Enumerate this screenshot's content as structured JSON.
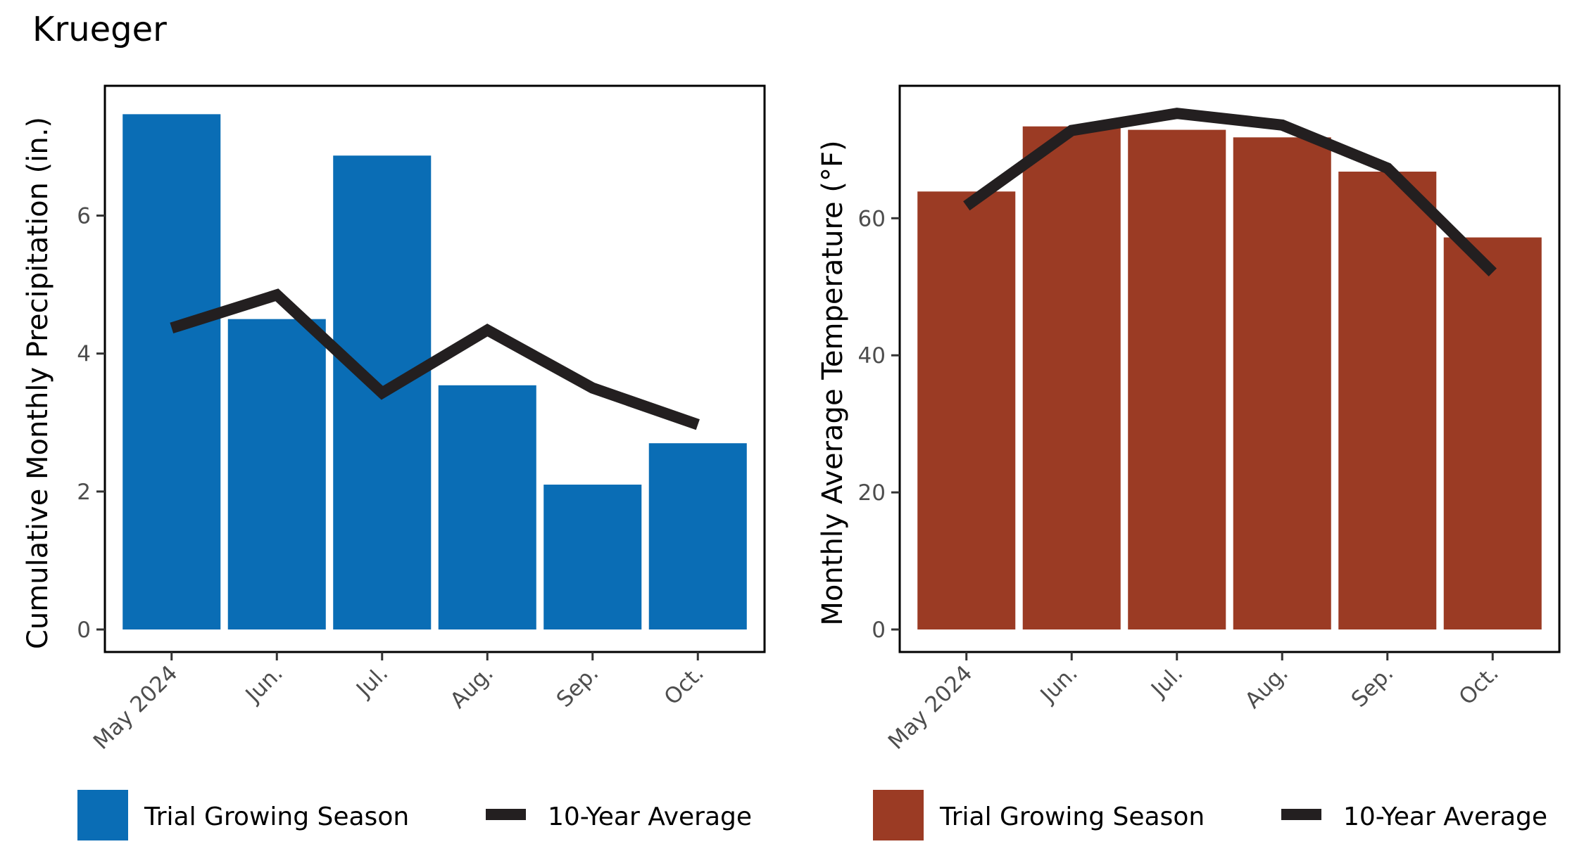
{
  "figure": {
    "title": "Krueger"
  },
  "chart_data": [
    {
      "type": "bar",
      "categories": [
        "May 2024",
        "Jun.",
        "Jul.",
        "Aug.",
        "Sep.",
        "Oct."
      ],
      "series": [
        {
          "name": "Trial Growing Season",
          "type": "bar",
          "values": [
            7.47,
            4.5,
            6.87,
            3.54,
            2.1,
            2.7
          ]
        },
        {
          "name": "10-Year Average",
          "type": "line",
          "values": [
            4.37,
            4.85,
            3.43,
            4.34,
            3.5,
            2.97
          ]
        }
      ],
      "title": "",
      "xlabel": "",
      "ylabel": "Cumulative Monthly Precipitation (in.)",
      "ylim": [
        0,
        7.8
      ],
      "yticks": [
        0,
        2,
        4,
        6
      ],
      "grid": false,
      "legend": "bottom",
      "colors": {
        "bar": "#0a6db5",
        "line": "#231f20"
      }
    },
    {
      "type": "bar",
      "categories": [
        "May 2024",
        "Jun.",
        "Jul.",
        "Aug.",
        "Sep.",
        "Oct."
      ],
      "series": [
        {
          "name": "Trial Growing Season",
          "type": "bar",
          "values": [
            63.9,
            73.4,
            72.9,
            71.8,
            66.8,
            57.2
          ]
        },
        {
          "name": "10-Year Average",
          "type": "line",
          "values": [
            61.8,
            72.8,
            75.3,
            73.6,
            67.3,
            52.1
          ]
        }
      ],
      "title": "",
      "xlabel": "",
      "ylabel": "Monthly Average Temperature  (°F)",
      "ylim": [
        0,
        78.5
      ],
      "yticks": [
        0,
        20,
        40,
        60
      ],
      "grid": false,
      "legend": "bottom",
      "colors": {
        "bar": "#9b3b24",
        "line": "#231f20"
      }
    }
  ]
}
